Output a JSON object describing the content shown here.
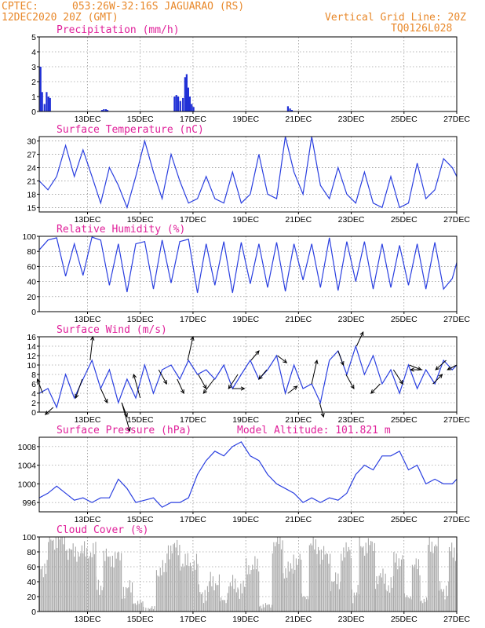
{
  "header": {
    "source": "CPTEC:",
    "location": "053:26W-32:16S  JAGUARAO (RS)",
    "run": "12DEC2020 20Z (GMT)",
    "grid_note": "Vertical Grid Line: 20Z",
    "model": "TQ0126L028"
  },
  "colors": {
    "header": "#e8882a",
    "title": "#e0209a",
    "line": "#2a3fe0",
    "bar": "#1f2fd6",
    "cloud": "#a8a8a8",
    "arrow": "#000000"
  },
  "x_axis": {
    "ticks": [
      {
        "label": "13DEC",
        "day": 1
      },
      {
        "label": "15DEC",
        "day": 3
      },
      {
        "label": "17DEC",
        "day": 5
      },
      {
        "label": "19DEC",
        "day": 7
      },
      {
        "label": "21DEC",
        "day": 9
      },
      {
        "label": "23DEC",
        "day": 11
      },
      {
        "label": "25DEC",
        "day": 13
      },
      {
        "label": "27DEC",
        "day": 15
      }
    ],
    "range": [
      -0.83,
      15
    ]
  },
  "chart_data": [
    {
      "id": "precip",
      "type": "bar",
      "title": "Precipitation (mm/h)",
      "ylim": [
        0,
        5
      ],
      "yticks": [
        0,
        1,
        2,
        3,
        4,
        5
      ],
      "unit_note": "x = days after 12DEC 00Z",
      "x": [
        -0.78,
        -0.72,
        -0.63,
        -0.55,
        -0.48,
        -0.42,
        1.55,
        1.62,
        1.7,
        1.76,
        4.3,
        4.37,
        4.44,
        4.52,
        4.62,
        4.7,
        4.76,
        4.82,
        4.88,
        4.95,
        5.02,
        8.6,
        8.68,
        8.75
      ],
      "values": [
        3.0,
        1.3,
        0.5,
        1.3,
        1.0,
        0.9,
        0.1,
        0.15,
        0.15,
        0.1,
        1.0,
        1.1,
        1.0,
        0.7,
        0.9,
        2.3,
        2.5,
        1.6,
        1.0,
        0.5,
        0.3,
        0.35,
        0.2,
        0.1
      ]
    },
    {
      "id": "temperature",
      "type": "line",
      "title": "Surface Temperature (nC)",
      "ylim": [
        14,
        31
      ],
      "yticks": [
        15,
        18,
        21,
        24,
        27,
        30
      ],
      "unit_note": "x = days after 12DEC 00Z",
      "x": [
        -0.83,
        -0.5,
        -0.17,
        0.17,
        0.5,
        0.83,
        1.17,
        1.5,
        1.83,
        2.17,
        2.5,
        2.83,
        3.17,
        3.5,
        3.83,
        4.17,
        4.5,
        4.83,
        5.17,
        5.5,
        5.83,
        6.17,
        6.5,
        6.83,
        7.17,
        7.5,
        7.83,
        8.17,
        8.5,
        8.83,
        9.17,
        9.5,
        9.83,
        10.17,
        10.5,
        10.83,
        11.17,
        11.5,
        11.83,
        12.17,
        12.5,
        12.83,
        13.17,
        13.5,
        13.83,
        14.17,
        14.5,
        14.83,
        15
      ],
      "values": [
        21,
        19,
        22,
        29,
        22,
        28,
        22,
        16,
        24,
        20,
        15,
        22,
        30,
        23,
        17,
        27,
        21,
        16,
        17,
        22,
        17,
        16,
        23,
        16,
        18,
        27,
        18,
        17,
        31,
        23,
        18,
        31,
        20,
        17,
        24,
        18,
        16,
        23,
        16,
        15,
        22,
        15,
        16,
        25,
        17,
        19,
        26,
        24,
        22
      ]
    },
    {
      "id": "humidity",
      "type": "line",
      "title": "Relative Humidity (%)",
      "ylim": [
        0,
        100
      ],
      "yticks": [
        0,
        20,
        40,
        60,
        80,
        100
      ],
      "unit_note": "x = days after 12DEC 00Z",
      "x": [
        -0.83,
        -0.5,
        -0.17,
        0.17,
        0.5,
        0.83,
        1.17,
        1.5,
        1.83,
        2.17,
        2.5,
        2.83,
        3.17,
        3.5,
        3.83,
        4.17,
        4.5,
        4.83,
        5.17,
        5.5,
        5.83,
        6.17,
        6.5,
        6.83,
        7.17,
        7.5,
        7.83,
        8.17,
        8.5,
        8.83,
        9.17,
        9.5,
        9.83,
        10.17,
        10.5,
        10.83,
        11.17,
        11.5,
        11.83,
        12.17,
        12.5,
        12.83,
        13.17,
        13.5,
        13.83,
        14.17,
        14.5,
        14.83,
        15
      ],
      "values": [
        82,
        95,
        98,
        47,
        90,
        48,
        99,
        95,
        35,
        90,
        26,
        90,
        93,
        30,
        95,
        38,
        93,
        96,
        25,
        90,
        35,
        93,
        25,
        92,
        37,
        90,
        32,
        92,
        27,
        90,
        42,
        90,
        32,
        98,
        28,
        93,
        40,
        93,
        30,
        90,
        32,
        88,
        35,
        90,
        30,
        92,
        30,
        44,
        65
      ]
    },
    {
      "id": "wind",
      "type": "line",
      "title": "Surface Wind (m/s)",
      "ylim": [
        0,
        16
      ],
      "yticks": [
        0,
        2,
        4,
        6,
        8,
        10,
        12,
        14,
        16
      ],
      "unit_note": "x = days after 12DEC 00Z; arrows give wind direction",
      "x": [
        -0.83,
        -0.5,
        -0.17,
        0.17,
        0.5,
        0.83,
        1.17,
        1.5,
        1.83,
        2.17,
        2.5,
        2.83,
        3.17,
        3.5,
        3.83,
        4.17,
        4.5,
        4.83,
        5.17,
        5.5,
        5.83,
        6.17,
        6.5,
        6.83,
        7.17,
        7.5,
        7.83,
        8.17,
        8.5,
        8.83,
        9.17,
        9.5,
        9.83,
        10.17,
        10.5,
        10.83,
        11.17,
        11.5,
        11.83,
        12.17,
        12.5,
        12.83,
        13.17,
        13.5,
        13.83,
        14.17,
        14.5,
        14.83,
        15
      ],
      "values": [
        4,
        5,
        1,
        8,
        3,
        7,
        11,
        5,
        9,
        2,
        7,
        3,
        10,
        4,
        9,
        10,
        7,
        11,
        8,
        9,
        7,
        10,
        5,
        8,
        11,
        7,
        9,
        12,
        4,
        10,
        5,
        6,
        2,
        11,
        13,
        8,
        14,
        8,
        12,
        6,
        9,
        4,
        10,
        5,
        9,
        6,
        11,
        9,
        10
      ],
      "arrows": [
        {
          "x": -0.7,
          "dx": -0.2,
          "dy": 3
        },
        {
          "x": -0.3,
          "dx": -0.3,
          "dy": -1.5
        },
        {
          "x": 0.8,
          "dx": -0.25,
          "dy": -4
        },
        {
          "x": 1.1,
          "dx": 0.1,
          "dy": 5
        },
        {
          "x": 1.5,
          "dx": 0.25,
          "dy": -3
        },
        {
          "x": 2.3,
          "dx": 0.2,
          "dy": -3
        },
        {
          "x": 2.3,
          "dx": 0.3,
          "dy": -6
        },
        {
          "x": 3.0,
          "dx": -0.25,
          "dy": 5
        },
        {
          "x": 3.7,
          "dx": 0.3,
          "dy": -3
        },
        {
          "x": 4.4,
          "dx": 0.25,
          "dy": -3
        },
        {
          "x": 4.8,
          "dx": 0.2,
          "dy": 5
        },
        {
          "x": 5.2,
          "dx": 0.3,
          "dy": -3
        },
        {
          "x": 5.8,
          "dx": -0.4,
          "dy": -3
        },
        {
          "x": 6.5,
          "dx": 0.45,
          "dy": 0
        },
        {
          "x": 6.7,
          "dx": -0.35,
          "dy": -3
        },
        {
          "x": 7.2,
          "dx": 0.3,
          "dy": 2
        },
        {
          "x": 7.8,
          "dx": -0.3,
          "dy": -2
        },
        {
          "x": 8.2,
          "dx": 0.35,
          "dy": -1.5
        },
        {
          "x": 8.6,
          "dx": 0.35,
          "dy": 1.5
        },
        {
          "x": 9.5,
          "dx": 0.2,
          "dy": 5
        },
        {
          "x": 9.8,
          "dx": 0.15,
          "dy": -3
        },
        {
          "x": 10.5,
          "dx": 0.2,
          "dy": -3
        },
        {
          "x": 10.8,
          "dx": 0.3,
          "dy": -3
        },
        {
          "x": 11.2,
          "dx": 0.25,
          "dy": 3
        },
        {
          "x": 12.1,
          "dx": -0.35,
          "dy": -2
        },
        {
          "x": 12.6,
          "dx": 0.35,
          "dy": -3
        },
        {
          "x": 13.2,
          "dx": 0.45,
          "dy": -1
        },
        {
          "x": 13.7,
          "dx": -0.45,
          "dy": 0
        },
        {
          "x": 14.1,
          "dx": 0.35,
          "dy": 2
        },
        {
          "x": 14.6,
          "dx": -0.4,
          "dy": -2
        },
        {
          "x": 15.0,
          "dx": -0.35,
          "dy": -1
        }
      ]
    },
    {
      "id": "pressure",
      "type": "line",
      "title": "Surface Pressure (hPa)",
      "annotation": "Model Altitude: 101.821 m",
      "ylim": [
        994,
        1010
      ],
      "yticks": [
        996,
        1000,
        1004,
        1008
      ],
      "unit_note": "x = days after 12DEC 00Z",
      "x": [
        -0.83,
        -0.5,
        -0.17,
        0.17,
        0.5,
        0.83,
        1.17,
        1.5,
        1.83,
        2.17,
        2.5,
        2.83,
        3.17,
        3.5,
        3.83,
        4.17,
        4.5,
        4.83,
        5.17,
        5.5,
        5.83,
        6.17,
        6.5,
        6.83,
        7.17,
        7.5,
        7.83,
        8.17,
        8.5,
        8.83,
        9.17,
        9.5,
        9.83,
        10.17,
        10.5,
        10.83,
        11.17,
        11.5,
        11.83,
        12.17,
        12.5,
        12.83,
        13.17,
        13.5,
        13.83,
        14.17,
        14.5,
        14.83,
        15
      ],
      "values": [
        997,
        998,
        999.5,
        998,
        996.5,
        997,
        996,
        997,
        997,
        1001,
        999,
        996,
        996.5,
        997,
        995,
        996,
        996,
        997,
        1002,
        1005,
        1007,
        1006,
        1008,
        1009,
        1006,
        1005,
        1002,
        1000,
        999,
        998,
        996,
        997,
        996,
        997,
        996.5,
        998,
        1002,
        1004,
        1003,
        1006,
        1006,
        1007,
        1003,
        1004,
        1000,
        1001,
        1000,
        1000,
        1001
      ]
    },
    {
      "id": "cloud",
      "type": "bar",
      "title": "Cloud Cover (%)",
      "ylim": [
        0,
        100
      ],
      "yticks": [
        0,
        20,
        40,
        60,
        80,
        100
      ],
      "unit_note": "x = start/end days after 12DEC 00Z; value = mean cover in that span",
      "x": [
        [
          -0.83,
          -0.5
        ],
        [
          -0.5,
          0.2
        ],
        [
          0.2,
          1.3
        ],
        [
          1.3,
          1.6
        ],
        [
          1.6,
          2.3
        ],
        [
          2.3,
          2.7
        ],
        [
          2.7,
          3.1
        ],
        [
          3.1,
          3.6
        ],
        [
          3.6,
          4.0
        ],
        [
          4.0,
          4.5
        ],
        [
          4.5,
          5.2
        ],
        [
          5.2,
          5.6
        ],
        [
          5.6,
          6.0
        ],
        [
          6.0,
          6.3
        ],
        [
          6.3,
          6.7
        ],
        [
          6.7,
          7.0
        ],
        [
          7.0,
          7.5
        ],
        [
          7.5,
          8.0
        ],
        [
          8.0,
          8.4
        ],
        [
          8.4,
          8.8
        ],
        [
          8.8,
          9.1
        ],
        [
          9.1,
          9.4
        ],
        [
          9.4,
          9.8
        ],
        [
          9.8,
          10.2
        ],
        [
          10.2,
          10.6
        ],
        [
          10.6,
          11.0
        ],
        [
          11.0,
          11.3
        ],
        [
          11.3,
          11.9
        ],
        [
          11.9,
          12.3
        ],
        [
          12.3,
          12.6
        ],
        [
          12.6,
          13.0
        ],
        [
          13.0,
          13.3
        ],
        [
          13.3,
          13.6
        ],
        [
          13.6,
          13.9
        ],
        [
          13.9,
          14.3
        ],
        [
          14.3,
          14.7
        ],
        [
          14.7,
          15
        ]
      ],
      "values": [
        60,
        96,
        80,
        35,
        72,
        30,
        12,
        4,
        55,
        85,
        65,
        25,
        40,
        15,
        35,
        30,
        60,
        8,
        92,
        55,
        70,
        20,
        88,
        75,
        40,
        80,
        25,
        88,
        45,
        35,
        70,
        20,
        60,
        15,
        90,
        30,
        80
      ]
    }
  ]
}
